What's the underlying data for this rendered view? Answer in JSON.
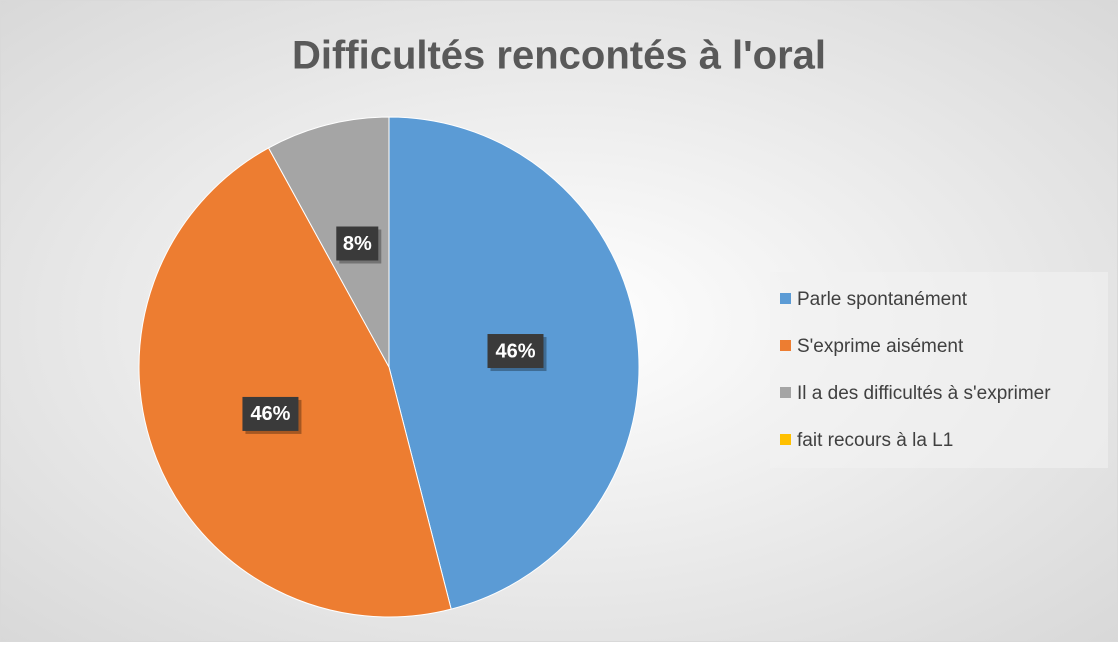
{
  "chart_data": {
    "type": "pie",
    "title": "Difficultés rencontés à l'oral",
    "categories": [
      "Parle spontanément",
      "S'exprime aisément",
      "Il a des difficultés à s'exprimer",
      "fait recours à la L1"
    ],
    "values": [
      46,
      46,
      8,
      0
    ],
    "value_labels": [
      "46%",
      "46%",
      "8%",
      null
    ],
    "colors": [
      "#5b9bd5",
      "#ed7d31",
      "#a5a5a5",
      "#ffc000"
    ],
    "legend": "right"
  }
}
